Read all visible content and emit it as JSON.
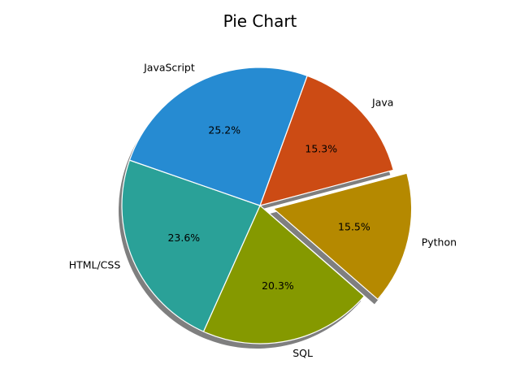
{
  "chart_data": {
    "type": "pie",
    "title": "Pie Chart",
    "start_angle_deg": 70,
    "direction": "clockwise",
    "shadow": true,
    "slices": [
      {
        "label": "Java",
        "value": 15.3,
        "pct_label": "15.3%",
        "color": "#cc4b14",
        "explode": false
      },
      {
        "label": "Python",
        "value": 15.5,
        "pct_label": "15.5%",
        "color": "#b58900",
        "explode": true
      },
      {
        "label": "SQL",
        "value": 20.3,
        "pct_label": "20.3%",
        "color": "#859900",
        "explode": false
      },
      {
        "label": "HTML/CSS",
        "value": 23.6,
        "pct_label": "23.6%",
        "color": "#2aa198",
        "explode": false
      },
      {
        "label": "JavaScript",
        "value": 25.2,
        "pct_label": "25.2%",
        "color": "#268bd2",
        "explode": false
      }
    ]
  }
}
